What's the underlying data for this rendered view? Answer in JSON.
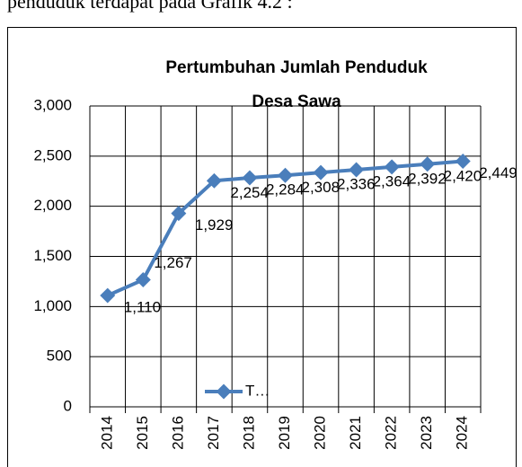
{
  "caption": "penduduk terdapat pada Grafik 4.2 :",
  "chart_data": {
    "type": "line",
    "title_lines": [
      "Pertumbuhan Jumlah Penduduk",
      "Desa Sawa"
    ],
    "categories": [
      "2014",
      "2015",
      "2016",
      "2017",
      "2018",
      "2019",
      "2020",
      "2021",
      "2022",
      "2023",
      "2024"
    ],
    "series": [
      {
        "name": "T…",
        "color": "#4a7ebb",
        "values": [
          1110,
          1267,
          1929,
          2254,
          2284,
          2308,
          2336,
          2364,
          2392,
          2420,
          2449
        ],
        "value_labels": [
          "1,110",
          "1,267",
          "1,929",
          "2,254",
          "2,284",
          "2,308",
          "2,336",
          "2,364",
          "2,392",
          "2,420",
          "2,449"
        ]
      }
    ],
    "ylim": [
      0,
      3000
    ],
    "yticks": [
      {
        "value": 0,
        "label": "0"
      },
      {
        "value": 500,
        "label": "500"
      },
      {
        "value": 1000,
        "label": "1,000"
      },
      {
        "value": 1500,
        "label": "1,500"
      },
      {
        "value": 2000,
        "label": "2,000"
      },
      {
        "value": 2500,
        "label": "2,500"
      },
      {
        "value": 3000,
        "label": "3,000"
      }
    ],
    "grid": true,
    "legend": "bottom"
  }
}
